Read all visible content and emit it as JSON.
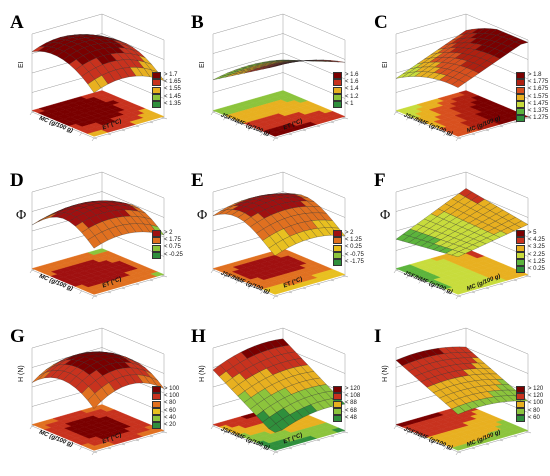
{
  "chart_data": [
    {
      "panel": "A",
      "type": "surface",
      "zlabel": "EI",
      "xlabel": "MC (g/100 g)",
      "ylabel": "ET (°C)",
      "legend": [
        "> 1.7",
        "< 1.65",
        "< 1.55",
        "< 1.45",
        "< 1.35"
      ],
      "colors": [
        "#7a0000",
        "#c8321e",
        "#e8b020",
        "#8cc43c",
        "#2f8f3c"
      ]
    },
    {
      "panel": "B",
      "type": "surface",
      "zlabel": "EI",
      "xlabel": "JSF/NMF (g/100 g)",
      "ylabel": "ET (°C)",
      "legend": [
        "> 1.6",
        "< 1.6",
        "< 1.4",
        "< 1.2",
        "< 1"
      ],
      "colors": [
        "#7a0000",
        "#c8321e",
        "#e8b020",
        "#8cc43c",
        "#2f8f3c"
      ]
    },
    {
      "panel": "C",
      "type": "surface",
      "zlabel": "EI",
      "xlabel": "JSF/NMF (g/100 g)",
      "ylabel": "MC (g/100 g)",
      "legend": [
        "> 1.8",
        "< 1.775",
        "< 1.675",
        "< 1.575",
        "< 1.475",
        "< 1.375",
        "< 1.275"
      ],
      "colors": [
        "#7a0000",
        "#b02010",
        "#d8501e",
        "#e8b020",
        "#c8dc3c",
        "#5cb43c",
        "#2f8f3c"
      ]
    },
    {
      "panel": "D",
      "type": "surface",
      "zlabel": "Φ",
      "xlabel": "MC (g/100 g)",
      "ylabel": "ET (°C)",
      "legend": [
        "> 2",
        "< 1.75",
        "< 0.75",
        "< -0.25"
      ],
      "colors": [
        "#a01010",
        "#e07020",
        "#8cc43c",
        "#2f8f3c"
      ]
    },
    {
      "panel": "E",
      "type": "surface",
      "zlabel": "Φ",
      "xlabel": "JSF/NMF (g/100 g)",
      "ylabel": "ET (°C)",
      "legend": [
        "> 2",
        "< 1.25",
        "< 0.25",
        "< -0.75",
        "< -1.75"
      ],
      "colors": [
        "#a01010",
        "#e07020",
        "#e8c020",
        "#8cc43c",
        "#2f8f3c"
      ]
    },
    {
      "panel": "F",
      "type": "surface",
      "zlabel": "Φ",
      "xlabel": "JSF/NMF (g/100 g)",
      "ylabel": "MC (g/100 g)",
      "legend": [
        "> 5",
        "< 4.25",
        "< 3.25",
        "< 2.25",
        "< 1.25",
        "< 0.25"
      ],
      "colors": [
        "#7a0000",
        "#c8321e",
        "#e8b020",
        "#c8dc3c",
        "#5cb43c",
        "#2f8f3c"
      ]
    },
    {
      "panel": "G",
      "type": "surface",
      "zlabel": "H (N)",
      "xlabel": "MC (g/100 g)",
      "ylabel": "ET (°C)",
      "legend": [
        "> 100",
        "< 100",
        "< 80",
        "< 60",
        "< 40",
        "< 20"
      ],
      "colors": [
        "#7a0000",
        "#c8321e",
        "#e07020",
        "#e8c020",
        "#8cc43c",
        "#2f8f3c"
      ]
    },
    {
      "panel": "H",
      "type": "surface",
      "zlabel": "H (N)",
      "xlabel": "JSF/NMF (g/100 g)",
      "ylabel": "ET (°C)",
      "legend": [
        "> 120",
        "< 108",
        "< 88",
        "< 68",
        "< 48"
      ],
      "colors": [
        "#7a0000",
        "#c8321e",
        "#e8b020",
        "#8cc43c",
        "#2f8f3c"
      ]
    },
    {
      "panel": "I",
      "type": "surface",
      "zlabel": "H (N)",
      "xlabel": "JSF/NMF (g/100 g)",
      "ylabel": "MC (g/100 g)",
      "legend": [
        "> 120",
        "< 120",
        "< 100",
        "< 80",
        "< 60"
      ],
      "colors": [
        "#7a0000",
        "#c8321e",
        "#e8b020",
        "#8cc43c",
        "#2f8f3c"
      ]
    }
  ]
}
